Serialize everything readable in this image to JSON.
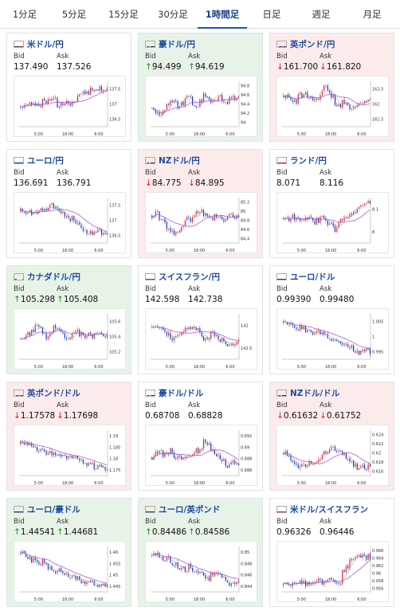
{
  "tabs": [
    {
      "label": "1分足",
      "active": false
    },
    {
      "label": "5分足",
      "active": false
    },
    {
      "label": "15分足",
      "active": false
    },
    {
      "label": "30分足",
      "active": false
    },
    {
      "label": "1時間足",
      "active": true
    },
    {
      "label": "日足",
      "active": false
    },
    {
      "label": "週足",
      "active": false
    },
    {
      "label": "月足",
      "active": false
    }
  ],
  "labels": {
    "bid": "Bid",
    "ask": "Ask"
  },
  "colors": {
    "up": "#1a8c1a",
    "down": "#d02020",
    "candle_up": "#e02020",
    "candle_down": "#1a2fb0",
    "ma": "#b040d0",
    "accent": "#1a56b8"
  },
  "cards": [
    {
      "pair": "米ドル/円",
      "flag": "us",
      "trend": "none",
      "bid": "137.490",
      "ask": "137.526",
      "chart": {
        "type": "candlestick",
        "ticks_y": [
          "137.5",
          "137",
          "136.5"
        ],
        "ticks_x": [
          "5:00",
          "18:00",
          "6:00"
        ],
        "seed": 1,
        "shape": [
          0.55,
          0.5,
          0.52,
          0.45,
          0.5,
          0.58,
          0.4,
          0.45,
          0.38,
          0.35,
          0.55,
          0.5,
          0.45,
          0.48,
          0.42,
          0.38,
          0.3,
          0.25,
          0.28,
          0.2,
          0.18,
          0.15,
          0.2,
          0.18
        ]
      }
    },
    {
      "pair": "豪ドル/円",
      "flag": "au",
      "trend": "up",
      "bid": "94.499",
      "ask": "94.619",
      "chart": {
        "type": "candlestick",
        "ticks_y": [
          "94.8",
          "94.6",
          "94.4",
          "94.2",
          "94"
        ],
        "ticks_x": [
          "5:00",
          "18:00",
          "6:00"
        ],
        "seed": 2,
        "shape": [
          0.6,
          0.7,
          0.75,
          0.65,
          0.55,
          0.45,
          0.4,
          0.6,
          0.5,
          0.35,
          0.3,
          0.5,
          0.55,
          0.45,
          0.3,
          0.35,
          0.5,
          0.4,
          0.35,
          0.45,
          0.5,
          0.4,
          0.35,
          0.38
        ]
      }
    },
    {
      "pair": "英ポンド/円",
      "flag": "gb",
      "trend": "down",
      "bid": "161.700",
      "ask": "161.820",
      "chart": {
        "type": "candlestick",
        "ticks_y": [
          "162.5",
          "162",
          "161.5"
        ],
        "ticks_x": [
          "5:00",
          "18:00",
          "6:00"
        ],
        "seed": 3,
        "shape": [
          0.35,
          0.3,
          0.4,
          0.45,
          0.3,
          0.35,
          0.3,
          0.4,
          0.45,
          0.35,
          0.25,
          0.15,
          0.2,
          0.35,
          0.5,
          0.55,
          0.45,
          0.5,
          0.6,
          0.55,
          0.5,
          0.52,
          0.48,
          0.45
        ]
      }
    },
    {
      "pair": "ユーロ/円",
      "flag": "eu",
      "trend": "none",
      "bid": "136.691",
      "ask": "136.791",
      "chart": {
        "type": "candlestick",
        "ticks_y": [
          "137.5",
          "137",
          "136.5"
        ],
        "ticks_x": [
          "5:00",
          "18:00",
          "6:00"
        ],
        "seed": 4,
        "shape": [
          0.3,
          0.35,
          0.3,
          0.35,
          0.3,
          0.25,
          0.3,
          0.25,
          0.15,
          0.2,
          0.3,
          0.35,
          0.45,
          0.5,
          0.45,
          0.55,
          0.65,
          0.7,
          0.75,
          0.8,
          0.78,
          0.75,
          0.78,
          0.76
        ]
      }
    },
    {
      "pair": "NZドル/円",
      "flag": "nz",
      "trend": "down",
      "bid": "84.775",
      "ask": "84.895",
      "chart": {
        "type": "candlestick",
        "ticks_y": [
          "85.2",
          "85",
          "84.8",
          "84.6",
          "84.4"
        ],
        "ticks_x": [
          "5:00",
          "18:00",
          "6:00"
        ],
        "seed": 5,
        "shape": [
          0.4,
          0.35,
          0.45,
          0.5,
          0.65,
          0.7,
          0.8,
          0.75,
          0.6,
          0.45,
          0.5,
          0.4,
          0.35,
          0.3,
          0.4,
          0.45,
          0.5,
          0.4,
          0.45,
          0.5,
          0.45,
          0.4,
          0.42,
          0.4
        ]
      }
    },
    {
      "pair": "ランド/円",
      "flag": "za",
      "trend": "none",
      "bid": "8.071",
      "ask": "8.116",
      "chart": {
        "type": "candlestick",
        "ticks_y": [
          "8.1",
          "8"
        ],
        "ticks_x": [
          "5:00",
          "18:00",
          "6:00"
        ],
        "seed": 6,
        "shape": [
          0.45,
          0.5,
          0.4,
          0.45,
          0.5,
          0.55,
          0.5,
          0.45,
          0.55,
          0.5,
          0.45,
          0.5,
          0.55,
          0.6,
          0.7,
          0.5,
          0.45,
          0.4,
          0.35,
          0.3,
          0.25,
          0.2,
          0.15,
          0.12
        ]
      }
    },
    {
      "pair": "カナダドル/円",
      "flag": "ca",
      "trend": "up",
      "bid": "105.298",
      "ask": "105.408",
      "chart": {
        "type": "candlestick",
        "ticks_y": [
          "105.6",
          "105.4",
          "105.2"
        ],
        "ticks_x": [
          "5:00",
          "18:00",
          "6:00"
        ],
        "seed": 7,
        "shape": [
          0.55,
          0.5,
          0.45,
          0.35,
          0.25,
          0.3,
          0.45,
          0.5,
          0.45,
          0.3,
          0.35,
          0.4,
          0.5,
          0.55,
          0.45,
          0.4,
          0.45,
          0.5,
          0.45,
          0.5,
          0.48,
          0.45,
          0.5,
          0.48
        ]
      }
    },
    {
      "pair": "スイスフラン/円",
      "flag": "ch",
      "trend": "none",
      "bid": "142.598",
      "ask": "142.738",
      "chart": {
        "type": "candlestick",
        "ticks_y": [
          "142",
          "142.5"
        ],
        "ticks_x": [
          "5:00",
          "18:00",
          "6:00"
        ],
        "seed": 8,
        "shape": [
          0.3,
          0.25,
          0.35,
          0.4,
          0.45,
          0.55,
          0.5,
          0.45,
          0.4,
          0.35,
          0.3,
          0.25,
          0.35,
          0.45,
          0.55,
          0.5,
          0.35,
          0.45,
          0.6,
          0.55,
          0.65,
          0.7,
          0.65,
          0.62
        ]
      }
    },
    {
      "pair": "ユーロ/ドル",
      "flag": "eu",
      "trend": "none",
      "bid": "0.99390",
      "ask": "0.99480",
      "chart": {
        "type": "candlestick",
        "ticks_y": [
          "1.005",
          "1",
          "0.995"
        ],
        "ticks_x": [
          "5:00",
          "18:00",
          "6:00"
        ],
        "seed": 9,
        "shape": [
          0.2,
          0.22,
          0.25,
          0.28,
          0.3,
          0.32,
          0.35,
          0.38,
          0.4,
          0.42,
          0.45,
          0.5,
          0.55,
          0.58,
          0.6,
          0.62,
          0.65,
          0.7,
          0.75,
          0.8,
          0.85,
          0.82,
          0.8,
          0.82
        ]
      }
    },
    {
      "pair": "英ポンド/ドル",
      "flag": "gb",
      "trend": "down",
      "bid": "1.17578",
      "ask": "1.17698",
      "chart": {
        "type": "candlestick",
        "ticks_y": [
          "1.19",
          "1.185",
          "1.18",
          "1.175"
        ],
        "ticks_x": [
          "5:00",
          "18:00",
          "6:00"
        ],
        "seed": 10,
        "shape": [
          0.3,
          0.32,
          0.35,
          0.38,
          0.4,
          0.42,
          0.45,
          0.48,
          0.5,
          0.52,
          0.55,
          0.58,
          0.6,
          0.62,
          0.6,
          0.62,
          0.65,
          0.7,
          0.75,
          0.78,
          0.82,
          0.8,
          0.82,
          0.85
        ]
      }
    },
    {
      "pair": "豪ドル/ドル",
      "flag": "au",
      "trend": "none",
      "bid": "0.68708",
      "ask": "0.68828",
      "chart": {
        "type": "candlestick",
        "ticks_y": [
          "0.692",
          "0.69",
          "0.688",
          "0.686"
        ],
        "ticks_x": [
          "5:00",
          "18:00",
          "6:00"
        ],
        "seed": 11,
        "shape": [
          0.6,
          0.5,
          0.45,
          0.55,
          0.5,
          0.45,
          0.6,
          0.55,
          0.65,
          0.6,
          0.55,
          0.5,
          0.45,
          0.4,
          0.25,
          0.3,
          0.45,
          0.55,
          0.6,
          0.7,
          0.8,
          0.75,
          0.72,
          0.75
        ]
      }
    },
    {
      "pair": "NZドル/ドル",
      "flag": "nz",
      "trend": "down",
      "bid": "0.61632",
      "ask": "0.61752",
      "chart": {
        "type": "candlestick",
        "ticks_y": [
          "0.624",
          "0.622",
          "0.62",
          "0.618",
          "0.616"
        ],
        "ticks_x": [
          "5:00",
          "18:00",
          "6:00"
        ],
        "seed": 12,
        "shape": [
          0.5,
          0.6,
          0.65,
          0.75,
          0.8,
          0.78,
          0.75,
          0.7,
          0.72,
          0.7,
          0.6,
          0.5,
          0.45,
          0.4,
          0.45,
          0.5,
          0.55,
          0.6,
          0.7,
          0.78,
          0.82,
          0.8,
          0.82,
          0.8
        ]
      }
    },
    {
      "pair": "ユーロ/豪ドル",
      "flag": "eu",
      "trend": "up",
      "bid": "1.44541",
      "ask": "1.44681",
      "chart": {
        "type": "candlestick",
        "ticks_y": [
          "1.46",
          "1.455",
          "1.45",
          "1.445"
        ],
        "ticks_x": [
          "5:00",
          "18:00",
          "6:00"
        ],
        "seed": 13,
        "shape": [
          0.15,
          0.2,
          0.25,
          0.3,
          0.35,
          0.4,
          0.3,
          0.45,
          0.5,
          0.55,
          0.5,
          0.55,
          0.6,
          0.65,
          0.6,
          0.7,
          0.75,
          0.8,
          0.75,
          0.8,
          0.85,
          0.88,
          0.85,
          0.86
        ]
      }
    },
    {
      "pair": "ユーロ/英ポンド",
      "flag": "eu",
      "trend": "up",
      "bid": "0.84486",
      "ask": "0.84586",
      "chart": {
        "type": "candlestick",
        "ticks_y": [
          "0.85",
          "0.848",
          "0.846",
          "0.844"
        ],
        "ticks_x": [
          "5:00",
          "18:00",
          "6:00"
        ],
        "seed": 14,
        "shape": [
          0.2,
          0.15,
          0.2,
          0.3,
          0.25,
          0.35,
          0.4,
          0.45,
          0.5,
          0.55,
          0.45,
          0.5,
          0.55,
          0.6,
          0.65,
          0.7,
          0.6,
          0.55,
          0.65,
          0.7,
          0.8,
          0.85,
          0.82,
          0.8
        ]
      }
    },
    {
      "pair": "米ドル/スイスフラン",
      "flag": "ch",
      "trend": "none",
      "bid": "0.96326",
      "ask": "0.96446",
      "chart": {
        "type": "candlestick",
        "ticks_y": [
          "0.966",
          "0.964",
          "0.962",
          "0.96",
          "0.958",
          "0.956"
        ],
        "ticks_x": [
          "5:00",
          "18:00",
          "6:00"
        ],
        "seed": 15,
        "shape": [
          0.85,
          0.8,
          0.82,
          0.85,
          0.8,
          0.78,
          0.82,
          0.85,
          0.8,
          0.75,
          0.78,
          0.8,
          0.75,
          0.7,
          0.75,
          0.78,
          0.55,
          0.45,
          0.3,
          0.25,
          0.2,
          0.22,
          0.25,
          0.22
        ]
      }
    }
  ]
}
